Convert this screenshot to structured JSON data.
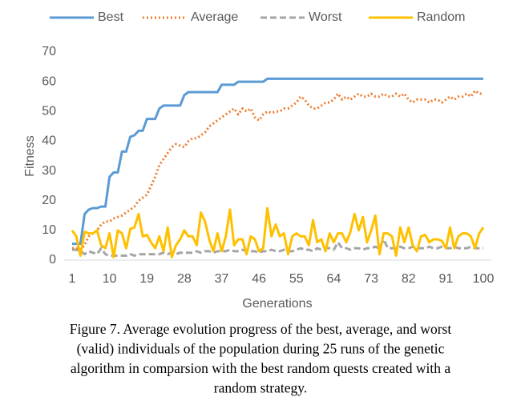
{
  "chart_data": {
    "type": "line",
    "x_label": "Generations",
    "y_label": "Fitness",
    "x": [
      1,
      2,
      3,
      4,
      5,
      6,
      7,
      8,
      9,
      10,
      11,
      12,
      13,
      14,
      15,
      16,
      17,
      18,
      19,
      20,
      21,
      22,
      23,
      24,
      25,
      26,
      27,
      28,
      29,
      30,
      31,
      32,
      33,
      34,
      35,
      36,
      37,
      38,
      39,
      40,
      41,
      42,
      43,
      44,
      45,
      46,
      47,
      48,
      49,
      50,
      51,
      52,
      53,
      54,
      55,
      56,
      57,
      58,
      59,
      60,
      61,
      62,
      63,
      64,
      65,
      66,
      67,
      68,
      69,
      70,
      71,
      72,
      73,
      74,
      75,
      76,
      77,
      78,
      79,
      80,
      81,
      82,
      83,
      84,
      85,
      86,
      87,
      88,
      89,
      90,
      91,
      92,
      93,
      94,
      95,
      96,
      97,
      98,
      99,
      100
    ],
    "xlim": [
      1,
      100
    ],
    "xticks": [
      1,
      10,
      19,
      28,
      37,
      46,
      55,
      64,
      73,
      82,
      91,
      100
    ],
    "ylim": [
      0,
      70
    ],
    "yticks": [
      0,
      10,
      20,
      30,
      40,
      50,
      60,
      70
    ],
    "grid": false,
    "legend": "top",
    "series": [
      {
        "name": "Best",
        "color": "#5b9bd5",
        "style": "solid",
        "values": [
          5.5,
          5.5,
          5.5,
          15.5,
          17,
          17.5,
          17.5,
          18,
          18,
          28,
          29.5,
          29.5,
          36.5,
          36.5,
          41.5,
          42,
          43.5,
          43.5,
          47.5,
          47.5,
          47.5,
          51,
          52,
          52,
          52,
          52,
          52,
          55.5,
          56.5,
          56.5,
          56.5,
          56.5,
          56.5,
          56.5,
          56.5,
          56.5,
          59,
          59,
          59,
          59,
          60,
          60,
          60,
          60,
          60,
          60,
          60,
          61,
          61,
          61,
          61,
          61,
          61,
          61,
          61,
          61,
          61,
          61,
          61,
          61,
          61,
          61,
          61,
          61,
          61,
          61,
          61,
          61,
          61,
          61,
          61,
          61,
          61,
          61,
          61,
          61,
          61,
          61,
          61,
          61,
          61,
          61,
          61,
          61,
          61,
          61,
          61,
          61,
          61,
          61,
          61,
          61,
          61,
          61,
          61,
          61,
          61,
          61,
          61,
          61
        ]
      },
      {
        "name": "Average",
        "color": "#ed7d31",
        "style": "dotted",
        "values": [
          4,
          4,
          3.5,
          5,
          8,
          9,
          10,
          12,
          13,
          13,
          14,
          14.5,
          15,
          16,
          17,
          18,
          20,
          21,
          22,
          25,
          28,
          32,
          34,
          36,
          38,
          39,
          38.5,
          38,
          40,
          41,
          41,
          42,
          43,
          45,
          46,
          47,
          48,
          49,
          50,
          51,
          49,
          51,
          50,
          51,
          48,
          47,
          49,
          50,
          49.5,
          50,
          50,
          51,
          51,
          52,
          53,
          55,
          54,
          52,
          51,
          51,
          52,
          53,
          53,
          54,
          56,
          54,
          55,
          54,
          55,
          56,
          55,
          55,
          56,
          55,
          55,
          56,
          55,
          55,
          56,
          55,
          56,
          54,
          53,
          54,
          54,
          54,
          53,
          54,
          54,
          53,
          54,
          55,
          54,
          55,
          55,
          56,
          55,
          57,
          56,
          56
        ]
      },
      {
        "name": "Worst",
        "color": "#a5a5a5",
        "style": "dashed",
        "values": [
          3.5,
          3.5,
          3,
          2,
          3,
          2.5,
          2,
          4,
          2,
          1.5,
          1.5,
          1.5,
          1.5,
          1.5,
          2,
          1.5,
          2,
          2,
          2,
          2,
          2,
          2,
          2.5,
          2,
          2.5,
          2,
          2.5,
          2.5,
          2.5,
          2.5,
          3,
          2.5,
          3,
          3,
          2.5,
          3,
          3,
          3,
          3.5,
          3,
          3,
          3.5,
          3,
          3,
          3,
          2.5,
          3,
          3,
          3.5,
          3,
          3,
          3.5,
          3,
          3,
          3.5,
          4,
          3.5,
          3.5,
          3,
          4,
          3.5,
          4,
          4,
          3.5,
          6,
          4,
          4,
          3.5,
          4,
          4,
          3.5,
          4,
          4,
          4.5,
          4,
          7,
          4,
          4,
          4,
          4.5,
          4,
          4,
          4.5,
          4,
          4,
          4,
          4.5,
          4,
          4,
          4.5,
          4,
          4,
          4.5,
          4,
          4,
          4,
          4.5,
          4,
          4,
          4
        ]
      },
      {
        "name": "Random",
        "color": "#ffc000",
        "style": "solid",
        "values": [
          10,
          8,
          1.5,
          9.5,
          9,
          9,
          10,
          5,
          4,
          9,
          1,
          10,
          9,
          4,
          10.5,
          11,
          15.5,
          8,
          8.5,
          6,
          4,
          8,
          3,
          11,
          1,
          5,
          7,
          10,
          8,
          8,
          5,
          16,
          13,
          7,
          3,
          9,
          3,
          8,
          17,
          5,
          7,
          7,
          2,
          8,
          7,
          3,
          4,
          17.5,
          8,
          12,
          8,
          9,
          2,
          8,
          9,
          8,
          8,
          5,
          13.5,
          6,
          7,
          3,
          9,
          6,
          9,
          9,
          6,
          9.5,
          15.5,
          10,
          14.5,
          6,
          10,
          15,
          2,
          9,
          9,
          8,
          1.5,
          11,
          6,
          11,
          5,
          3,
          8,
          8.5,
          6,
          7,
          7,
          6.5,
          4,
          11,
          4,
          8,
          9,
          9,
          8,
          4,
          9,
          11
        ]
      }
    ],
    "caption": [
      "Figure 7.   Average evolution progress of the best, average, and worst",
      "(valid) individuals of the population during 25 runs of the genetic",
      "algorithm in comparsion with the best random quests created with a",
      "random strategy."
    ]
  }
}
